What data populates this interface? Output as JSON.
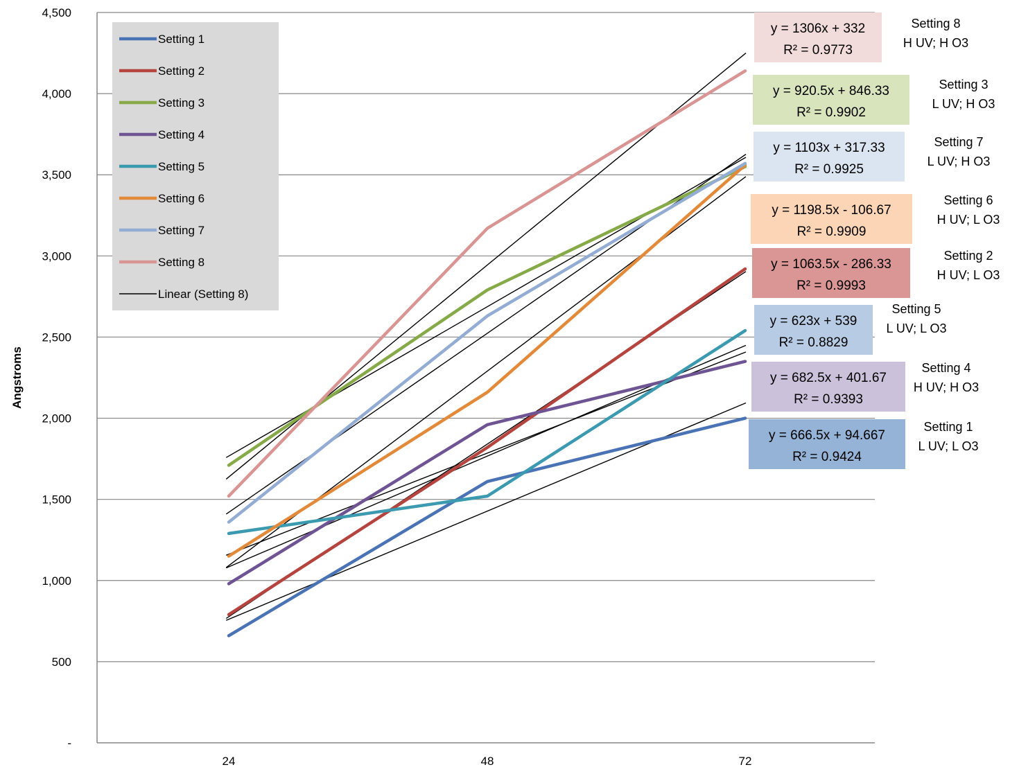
{
  "chart_data": {
    "type": "line",
    "title": "",
    "xlabel": "",
    "ylabel": "Angstroms",
    "x": [
      24,
      48,
      72
    ],
    "x_tick_labels": [
      "24",
      "48",
      "72"
    ],
    "ylim": [
      0,
      4500
    ],
    "y_ticks": [
      0,
      500,
      1000,
      1500,
      2000,
      2500,
      3000,
      3500,
      4000,
      4500
    ],
    "y_tick_labels": [
      "-",
      "500",
      "1,000",
      "1,500",
      "2,000",
      "2,500",
      "3,000",
      "3,500",
      "4,000",
      "4,500"
    ],
    "grid": "horizontal",
    "legend_position": "top-left",
    "series": [
      {
        "name": "Setting 1",
        "values": [
          660,
          1610,
          2000
        ],
        "color": "#4a73b5"
      },
      {
        "name": "Setting 2",
        "values": [
          790,
          1820,
          2920
        ],
        "color": "#b5443f"
      },
      {
        "name": "Setting 3",
        "values": [
          1710,
          2790,
          3550
        ],
        "color": "#86aa48"
      },
      {
        "name": "Setting 4",
        "values": [
          980,
          1960,
          2350
        ],
        "color": "#6f5494"
      },
      {
        "name": "Setting 5",
        "values": [
          1290,
          1520,
          2540
        ],
        "color": "#3b9ab0"
      },
      {
        "name": "Setting 6",
        "values": [
          1150,
          2160,
          3560
        ],
        "color": "#e28a3a"
      },
      {
        "name": "Setting 7",
        "values": [
          1360,
          2630,
          3570
        ],
        "color": "#93acd3"
      },
      {
        "name": "Setting 8",
        "values": [
          1520,
          3170,
          4140
        ],
        "color": "#d99594"
      }
    ],
    "trendline_legend_label": "Linear (Setting 8)",
    "trendline_color": "#000000",
    "trendlines": [
      {
        "series": "Setting 1",
        "slope": 666.5,
        "intercept": 94.667
      },
      {
        "series": "Setting 2",
        "slope": 1063.5,
        "intercept": -286.33
      },
      {
        "series": "Setting 3",
        "slope": 920.5,
        "intercept": 846.33
      },
      {
        "series": "Setting 4",
        "slope": 682.5,
        "intercept": 401.67
      },
      {
        "series": "Setting 5",
        "slope": 623,
        "intercept": 539
      },
      {
        "series": "Setting 6",
        "slope": 1198.5,
        "intercept": -106.67
      },
      {
        "series": "Setting 7",
        "slope": 1103,
        "intercept": 317.33
      },
      {
        "series": "Setting 8",
        "slope": 1306,
        "intercept": 332
      }
    ],
    "annotations": [
      {
        "series": "Setting 8",
        "equation": "y = 1306x + 332",
        "r2": "R² = 0.9773",
        "box_color": "#f2dcdb",
        "note_line1": "Setting 8",
        "note_line2": "H UV; H O3"
      },
      {
        "series": "Setting 3",
        "equation": "y = 920.5x + 846.33",
        "r2": "R² = 0.9902",
        "box_color": "#d7e4bc",
        "note_line1": "Setting 3",
        "note_line2": "L UV; H O3"
      },
      {
        "series": "Setting 7",
        "equation": "y = 1103x + 317.33",
        "r2": "R² = 0.9925",
        "box_color": "#dbe5f1",
        "note_line1": "Setting 7",
        "note_line2": "L UV; H O3"
      },
      {
        "series": "Setting 6",
        "equation": "y = 1198.5x - 106.67",
        "r2": "R² = 0.9909",
        "box_color": "#fbd5b5",
        "note_line1": "Setting 6",
        "note_line2": "H UV; L O3"
      },
      {
        "series": "Setting 2",
        "equation": "y = 1063.5x - 286.33",
        "r2": "R² = 0.9993",
        "box_color": "#da9694",
        "note_line1": "Setting 2",
        "note_line2": "H UV; L O3"
      },
      {
        "series": "Setting 5",
        "equation": "y = 623x + 539",
        "r2": "R² = 0.8829",
        "box_color": "#b7cce4",
        "note_line1": "Setting 5",
        "note_line2": "L UV; L O3"
      },
      {
        "series": "Setting 4",
        "equation": "y = 682.5x + 401.67",
        "r2": "R² = 0.9393",
        "box_color": "#ccc1da",
        "note_line1": "Setting 4",
        "note_line2": "H UV; H O3"
      },
      {
        "series": "Setting 1",
        "equation": "y = 666.5x + 94.667",
        "r2": "R² = 0.9424",
        "box_color": "#95b3d7",
        "note_line1": "Setting 1",
        "note_line2": "L UV; L O3"
      }
    ]
  }
}
